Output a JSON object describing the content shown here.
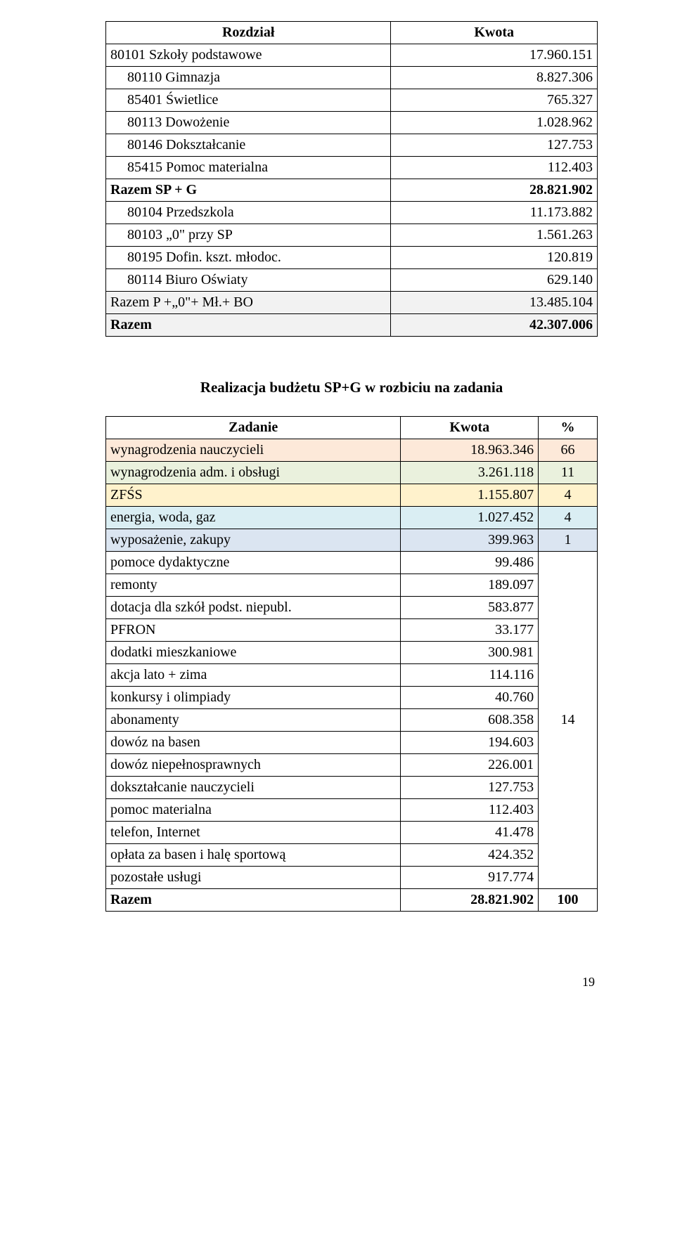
{
  "table1": {
    "headers": {
      "col1": "Rozdział",
      "col2": "Kwota"
    },
    "rows": [
      {
        "label": "80101 Szkoły podstawowe",
        "value": "17.960.151",
        "style": ""
      },
      {
        "label": "80110 Gimnazja",
        "value": "8.827.306",
        "style": "ind"
      },
      {
        "label": "85401 Świetlice",
        "value": "765.327",
        "style": "ind"
      },
      {
        "label": "80113 Dowożenie",
        "value": "1.028.962",
        "style": "ind"
      },
      {
        "label": "80146 Dokształcanie",
        "value": "127.753",
        "style": "ind"
      },
      {
        "label": "85415 Pomoc materialna",
        "value": "112.403",
        "style": "ind"
      },
      {
        "label": "Razem  SP + G",
        "value": "28.821.902",
        "style": "bold"
      },
      {
        "label": "80104 Przedszkola",
        "value": "11.173.882",
        "style": "ind"
      },
      {
        "label": "80103 „0\" przy SP",
        "value": "1.561.263",
        "style": "ind"
      },
      {
        "label": "80195 Dofin. kszt. młodoc.",
        "value": "120.819",
        "style": "ind"
      },
      {
        "label": "80114 Biuro Oświaty",
        "value": "629.140",
        "style": "ind"
      },
      {
        "label": "Razem P +„0\"+ Mł.+ BO",
        "value": "13.485.104",
        "style": "gray"
      },
      {
        "label": "Razem",
        "value": "42.307.006",
        "style": "graybold"
      }
    ]
  },
  "heading": "Realizacja budżetu SP+G w rozbiciu na zadania",
  "table2": {
    "headers": {
      "col1": "Zadanie",
      "col2": "Kwota",
      "col3": "%"
    },
    "highlight_colors": {
      "r1": "#fde9d9",
      "r2": "#eaf1dd",
      "r3": "#fff2cc",
      "r4": "#daeef3",
      "r5": "#dbe5f1"
    },
    "rows_top": [
      {
        "label": "wynagrodzenia nauczycieli",
        "value": "18.963.346",
        "pct": "66",
        "bg": "r1"
      },
      {
        "label": "wynagrodzenia adm. i obsługi",
        "value": "3.261.118",
        "pct": "11",
        "bg": "r2"
      },
      {
        "label": "ZFŚS",
        "value": "1.155.807",
        "pct": "4",
        "bg": "r3"
      },
      {
        "label": "energia, woda, gaz",
        "value": "1.027.452",
        "pct": "4",
        "bg": "r4"
      },
      {
        "label": "wyposażenie, zakupy",
        "value": "399.963",
        "pct": "1",
        "bg": "r5"
      }
    ],
    "merged_pct": "14",
    "rows_merged": [
      {
        "label": "pomoce dydaktyczne",
        "value": "99.486"
      },
      {
        "label": "remonty",
        "value": "189.097"
      },
      {
        "label": "dotacja dla szkół podst. niepubl.",
        "value": "583.877"
      },
      {
        "label": "PFRON",
        "value": "33.177"
      },
      {
        "label": "dodatki mieszkaniowe",
        "value": "300.981"
      },
      {
        "label": "akcja lato + zima",
        "value": "114.116"
      },
      {
        "label": "konkursy i olimpiady",
        "value": "40.760"
      },
      {
        "label": "abonamenty",
        "value": "608.358"
      },
      {
        "label": "dowóz na basen",
        "value": "194.603"
      },
      {
        "label": "dowóz niepełnosprawnych",
        "value": "226.001"
      },
      {
        "label": "dokształcanie nauczycieli",
        "value": "127.753"
      },
      {
        "label": "pomoc materialna",
        "value": "112.403"
      },
      {
        "label": "telefon, Internet",
        "value": "41.478"
      },
      {
        "label": "opłata za basen i halę sportową",
        "value": "424.352"
      },
      {
        "label": "pozostałe usługi",
        "value": "917.774"
      }
    ],
    "total": {
      "label": "Razem",
      "value": "28.821.902",
      "pct": "100"
    }
  },
  "page_number": "19"
}
